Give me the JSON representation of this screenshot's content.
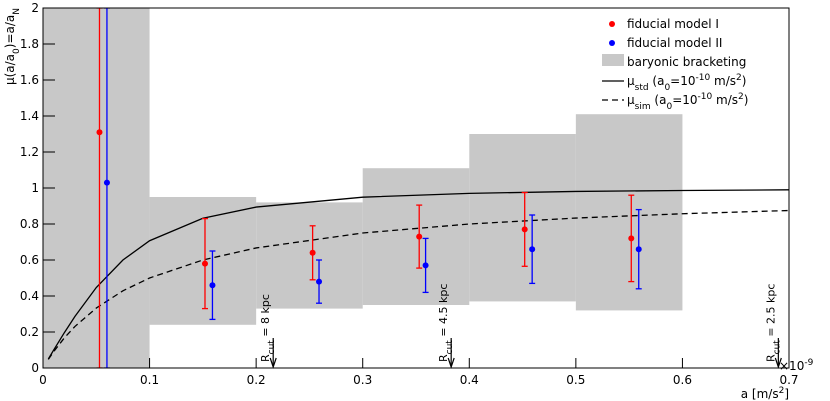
{
  "chart_data": {
    "type": "errorbar",
    "xlim": [
      0,
      0.7
    ],
    "ylim": [
      0,
      2
    ],
    "xticks": [
      0,
      0.1,
      0.2,
      0.3,
      0.4,
      0.5,
      0.6,
      0.7
    ],
    "yticks": [
      0,
      0.2,
      0.4,
      0.6,
      0.8,
      1,
      1.2,
      1.4,
      1.6,
      1.8,
      2
    ],
    "x_exponent": [
      {
        "text": "×10"
      },
      {
        "text": "-9",
        "shift": "super"
      }
    ],
    "x_label": [
      {
        "text": "a [m/s"
      },
      {
        "text": "2",
        "shift": "super"
      },
      {
        "text": "]"
      }
    ],
    "y_label": [
      {
        "text": "μ(a/a"
      },
      {
        "text": "0",
        "shift": "sub"
      },
      {
        "text": ")=a/a"
      },
      {
        "text": "N",
        "shift": "sub"
      }
    ],
    "legend": "top-right",
    "band": {
      "name": "baryonic bracketing",
      "color": "#c8c8c8",
      "bins": [
        0,
        0.1,
        0.2,
        0.3,
        0.4,
        0.5,
        0.6
      ],
      "low": [
        0,
        0.24,
        0.33,
        0.35,
        0.37,
        0.32
      ],
      "high": [
        2,
        0.95,
        0.92,
        1.11,
        1.3,
        1.41
      ]
    },
    "series": [
      {
        "name": "fiducial model I",
        "color": "#ff0000",
        "x": [
          0.053,
          0.152,
          0.253,
          0.353,
          0.452,
          0.552
        ],
        "values": [
          1.31,
          0.58,
          0.64,
          0.73,
          0.77,
          0.72
        ],
        "err_low": [
          1.31,
          0.25,
          0.15,
          0.175,
          0.205,
          0.24
        ],
        "err_high": [
          0.69,
          0.25,
          0.15,
          0.175,
          0.205,
          0.24
        ]
      },
      {
        "name": "fiducial model II",
        "color": "#0000ff",
        "x": [
          0.06,
          0.159,
          0.259,
          0.359,
          0.459,
          0.559
        ],
        "values": [
          1.03,
          0.46,
          0.48,
          0.57,
          0.66,
          0.66
        ],
        "err_low": [
          1.03,
          0.19,
          0.12,
          0.15,
          0.19,
          0.22
        ],
        "err_high": [
          0.97,
          0.19,
          0.12,
          0.15,
          0.19,
          0.22
        ]
      }
    ],
    "curves": [
      {
        "name": [
          {
            "text": "μ"
          },
          {
            "text": "std",
            "shift": "sub"
          },
          {
            "text": " (a"
          },
          {
            "text": "0",
            "shift": "sub"
          },
          {
            "text": "=10"
          },
          {
            "text": "-10",
            "shift": "super"
          },
          {
            "text": " m/s"
          },
          {
            "text": "2",
            "shift": "super"
          },
          {
            "text": ")"
          }
        ],
        "color": "#000000",
        "dash": false,
        "x": [
          0.005,
          0.01,
          0.02,
          0.03,
          0.05,
          0.075,
          0.1,
          0.15,
          0.2,
          0.3,
          0.4,
          0.5,
          0.6,
          0.7
        ],
        "values": [
          0.0499,
          0.0995,
          0.196,
          0.287,
          0.447,
          0.6,
          0.707,
          0.832,
          0.894,
          0.949,
          0.97,
          0.981,
          0.986,
          0.99
        ]
      },
      {
        "name": [
          {
            "text": "μ"
          },
          {
            "text": "sim",
            "shift": "sub"
          },
          {
            "text": " (a"
          },
          {
            "text": "0",
            "shift": "sub"
          },
          {
            "text": "=10"
          },
          {
            "text": "-10",
            "shift": "super"
          },
          {
            "text": " m/s"
          },
          {
            "text": "2",
            "shift": "super"
          },
          {
            "text": ")"
          }
        ],
        "color": "#000000",
        "dash": true,
        "x": [
          0.005,
          0.01,
          0.02,
          0.03,
          0.05,
          0.075,
          0.1,
          0.15,
          0.2,
          0.3,
          0.4,
          0.5,
          0.6,
          0.7
        ],
        "values": [
          0.0476,
          0.0909,
          0.167,
          0.231,
          0.333,
          0.429,
          0.5,
          0.6,
          0.667,
          0.75,
          0.8,
          0.833,
          0.857,
          0.875
        ]
      }
    ],
    "annotations": [
      {
        "x": 0.216,
        "text": [
          {
            "text": "R"
          },
          {
            "text": "cut",
            "shift": "sub"
          },
          {
            "text": " = 8 kpc"
          }
        ]
      },
      {
        "x": 0.383,
        "text": [
          {
            "text": "R"
          },
          {
            "text": "cut",
            "shift": "sub"
          },
          {
            "text": " = 4.5 kpc"
          }
        ]
      },
      {
        "x": 0.69,
        "text": [
          {
            "text": "R"
          },
          {
            "text": "cut",
            "shift": "sub"
          },
          {
            "text": " = 2.5 kpc"
          }
        ]
      }
    ]
  }
}
